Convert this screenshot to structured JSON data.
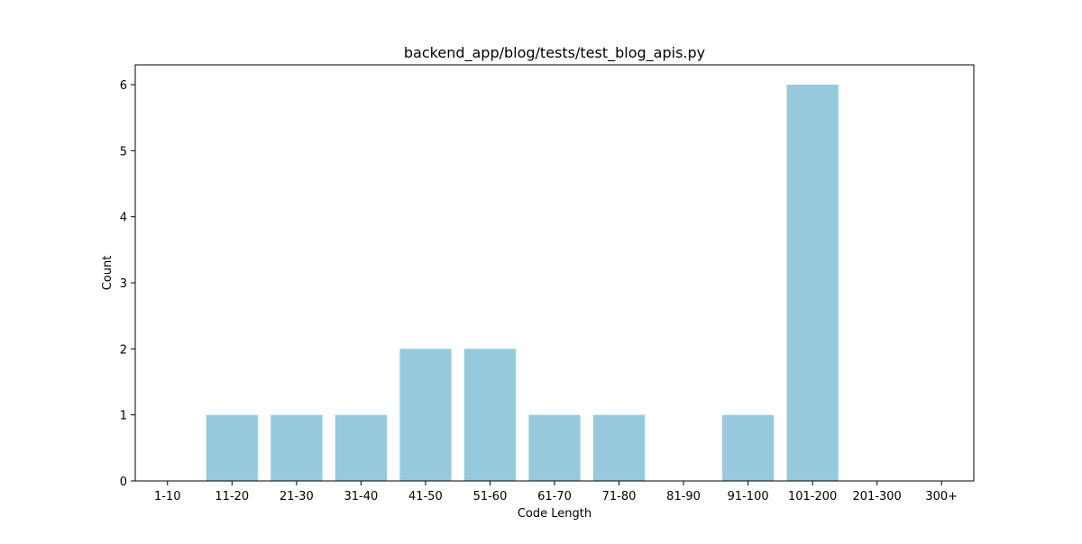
{
  "chart_data": {
    "type": "bar",
    "title": "backend_app/blog/tests/test_blog_apis.py",
    "xlabel": "Code Length",
    "ylabel": "Count",
    "categories": [
      "1-10",
      "11-20",
      "21-30",
      "31-40",
      "41-50",
      "51-60",
      "61-70",
      "71-80",
      "81-90",
      "91-100",
      "101-200",
      "201-300",
      "300+"
    ],
    "values": [
      0,
      1,
      1,
      1,
      2,
      2,
      1,
      1,
      0,
      1,
      6,
      0,
      0
    ],
    "ylim": [
      0,
      6.3
    ],
    "yticks": [
      "0",
      "1",
      "2",
      "3",
      "4",
      "5",
      "6"
    ],
    "grid": false,
    "bar_color": "#96c9dc"
  }
}
